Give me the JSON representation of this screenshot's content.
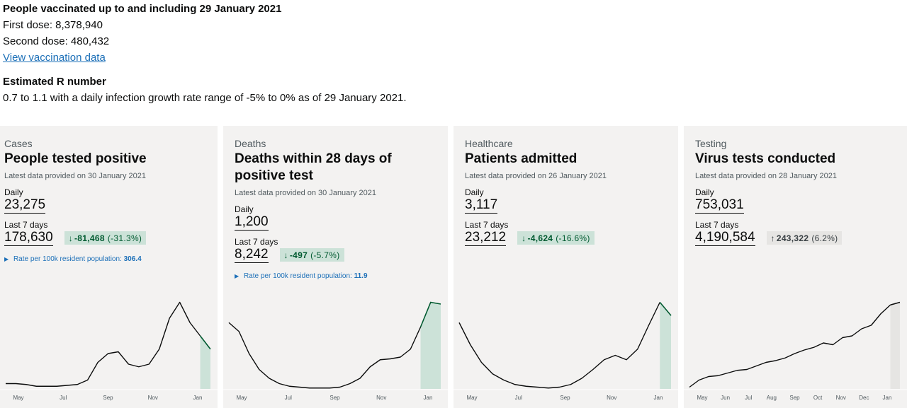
{
  "vaccination": {
    "title": "People vaccinated up to and including 29 January 2021",
    "first_dose": "First dose: 8,378,940",
    "second_dose": "Second dose: 480,432",
    "link": "View vaccination data"
  },
  "r_number": {
    "title": "Estimated R number",
    "text": "0.7 to 1.1 with a daily infection growth rate range of -5% to 0% as of 29 January 2021."
  },
  "cards": [
    {
      "category": "Cases",
      "heading": "People tested positive",
      "latest": "Latest data provided on 30 January 2021",
      "daily_label": "Daily",
      "daily_value": "23,275",
      "week_label": "Last 7 days",
      "week_value": "178,630",
      "change_arrow": "↓",
      "change_value": "-81,468",
      "change_pct": "(-31.3%)",
      "change_color": "green",
      "rate_label": "Rate per 100k resident population:",
      "rate_value": "306.4",
      "months": [
        "May",
        "Jul",
        "Sep",
        "Nov",
        "Jan"
      ],
      "trend": [
        0.06,
        0.06,
        0.05,
        0.03,
        0.03,
        0.03,
        0.04,
        0.05,
        0.1,
        0.3,
        0.4,
        0.42,
        0.28,
        0.25,
        0.28,
        0.45,
        0.8,
        0.98,
        0.75,
        0.6,
        0.45
      ],
      "shade_from_index": 19
    },
    {
      "category": "Deaths",
      "heading": "Deaths within 28 days of positive test",
      "latest": "Latest data provided on 30 January 2021",
      "daily_label": "Daily",
      "daily_value": "1,200",
      "week_label": "Last 7 days",
      "week_value": "8,242",
      "change_arrow": "↓",
      "change_value": "-497",
      "change_pct": "(-5.7%)",
      "change_color": "green",
      "rate_label": "Rate per 100k resident population:",
      "rate_value": "11.9",
      "months": [
        "May",
        "Jul",
        "Sep",
        "Nov",
        "Jan"
      ],
      "trend": [
        0.75,
        0.65,
        0.4,
        0.22,
        0.12,
        0.06,
        0.03,
        0.02,
        0.01,
        0.01,
        0.01,
        0.02,
        0.06,
        0.12,
        0.25,
        0.33,
        0.34,
        0.36,
        0.45,
        0.7,
        0.98,
        0.96
      ],
      "shade_from_index": 19
    },
    {
      "category": "Healthcare",
      "heading": "Patients admitted",
      "latest": "Latest data provided on 26 January 2021",
      "daily_label": "Daily",
      "daily_value": "3,117",
      "week_label": "Last 7 days",
      "week_value": "23,212",
      "change_arrow": "↓",
      "change_value": "-4,624",
      "change_pct": "(-16.6%)",
      "change_color": "green",
      "months": [
        "May",
        "Jul",
        "Sep",
        "Nov",
        "Jan"
      ],
      "trend": [
        0.75,
        0.5,
        0.3,
        0.17,
        0.1,
        0.05,
        0.03,
        0.02,
        0.01,
        0.02,
        0.05,
        0.12,
        0.22,
        0.33,
        0.38,
        0.33,
        0.45,
        0.72,
        0.98,
        0.83
      ],
      "shade_from_index": 18
    },
    {
      "category": "Testing",
      "heading": "Virus tests conducted",
      "latest": "Latest data provided on 28 January 2021",
      "daily_label": "Daily",
      "daily_value": "753,031",
      "week_label": "Last 7 days",
      "week_value": "4,190,584",
      "change_arrow": "↑",
      "change_value": "243,322",
      "change_pct": "(6.2%)",
      "change_color": "grey",
      "months": [
        "May",
        "Jun",
        "Jul",
        "Aug",
        "Sep",
        "Oct",
        "Nov",
        "Dec",
        "Jan"
      ],
      "trend": [
        0.02,
        0.1,
        0.14,
        0.15,
        0.18,
        0.21,
        0.22,
        0.26,
        0.3,
        0.32,
        0.35,
        0.4,
        0.44,
        0.47,
        0.52,
        0.5,
        0.58,
        0.6,
        0.68,
        0.72,
        0.85,
        0.95,
        0.98
      ],
      "shade_from_index": 21
    }
  ]
}
